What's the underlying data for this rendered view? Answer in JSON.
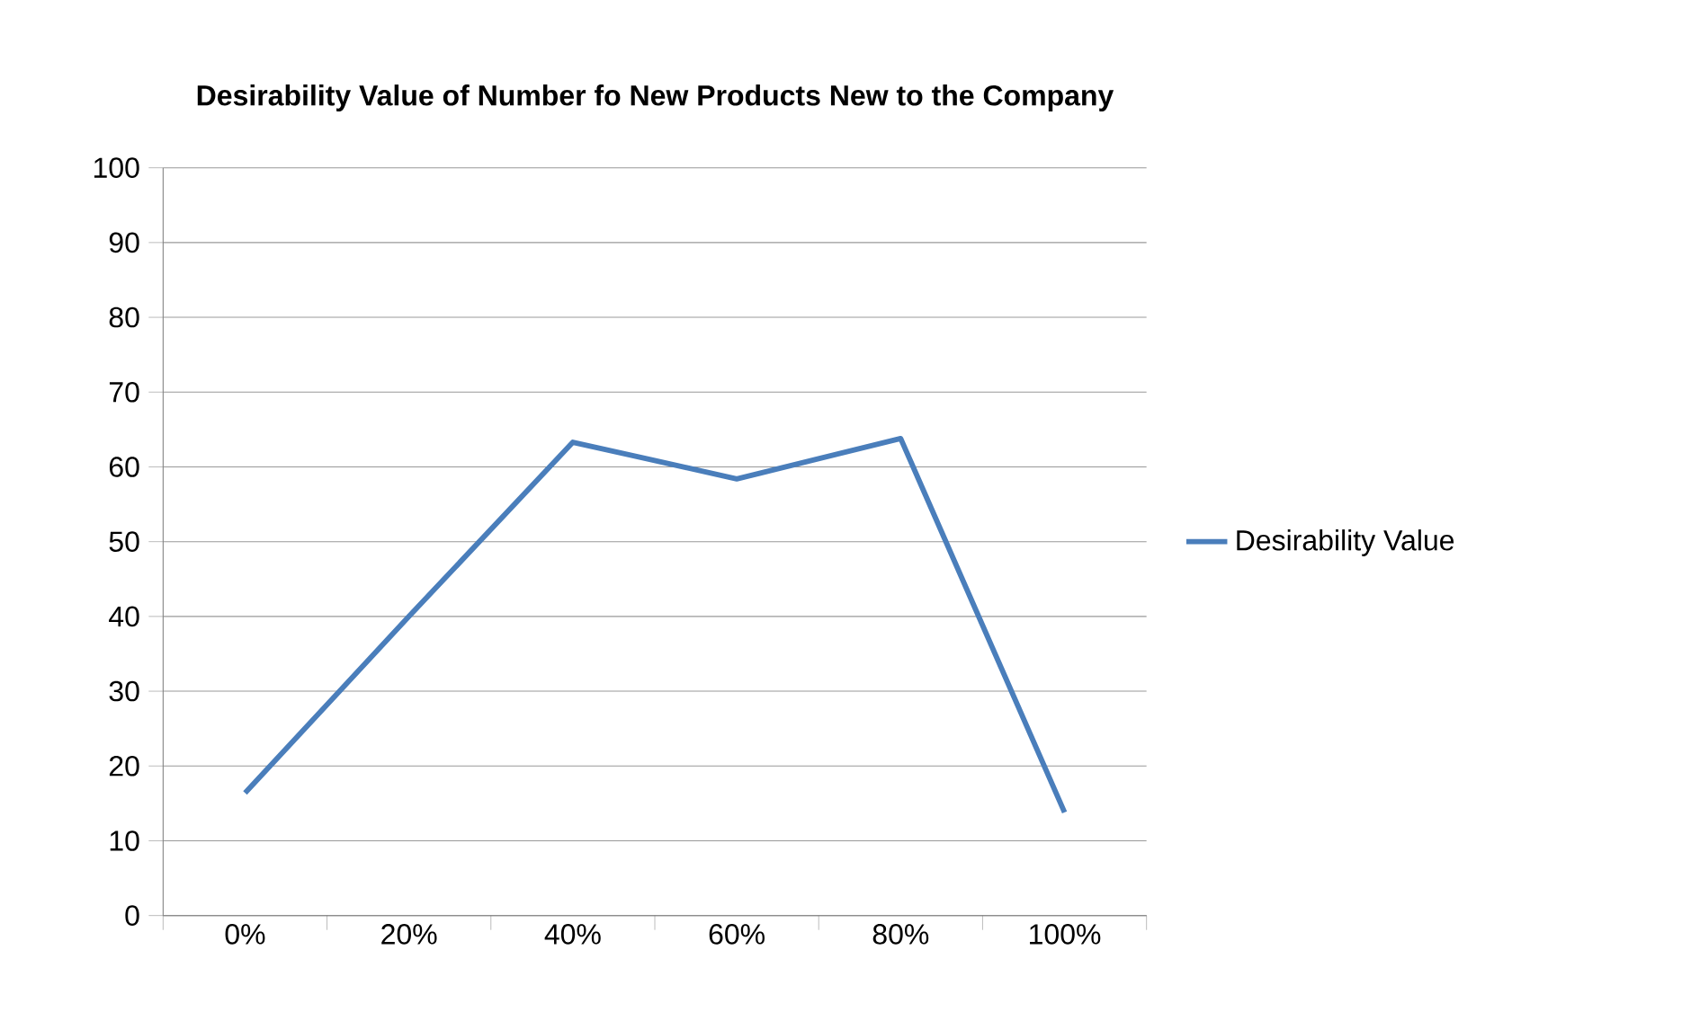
{
  "chart_data": {
    "type": "line",
    "title": "Desirability Value of Number fo New Products New to the Company",
    "categories": [
      "0%",
      "20%",
      "40%",
      "60%",
      "80%",
      "100%"
    ],
    "series": [
      {
        "name": "Desirability Value",
        "color": "#4a7ebb",
        "values": [
          16.4,
          40,
          63.3,
          58.4,
          63.8,
          13.8
        ]
      }
    ],
    "ylim": [
      0,
      100
    ],
    "yticks": [
      0,
      10,
      20,
      30,
      40,
      50,
      60,
      70,
      80,
      90,
      100
    ],
    "grid": "y",
    "legend": "right",
    "marker": "none",
    "line_style": "solid"
  }
}
